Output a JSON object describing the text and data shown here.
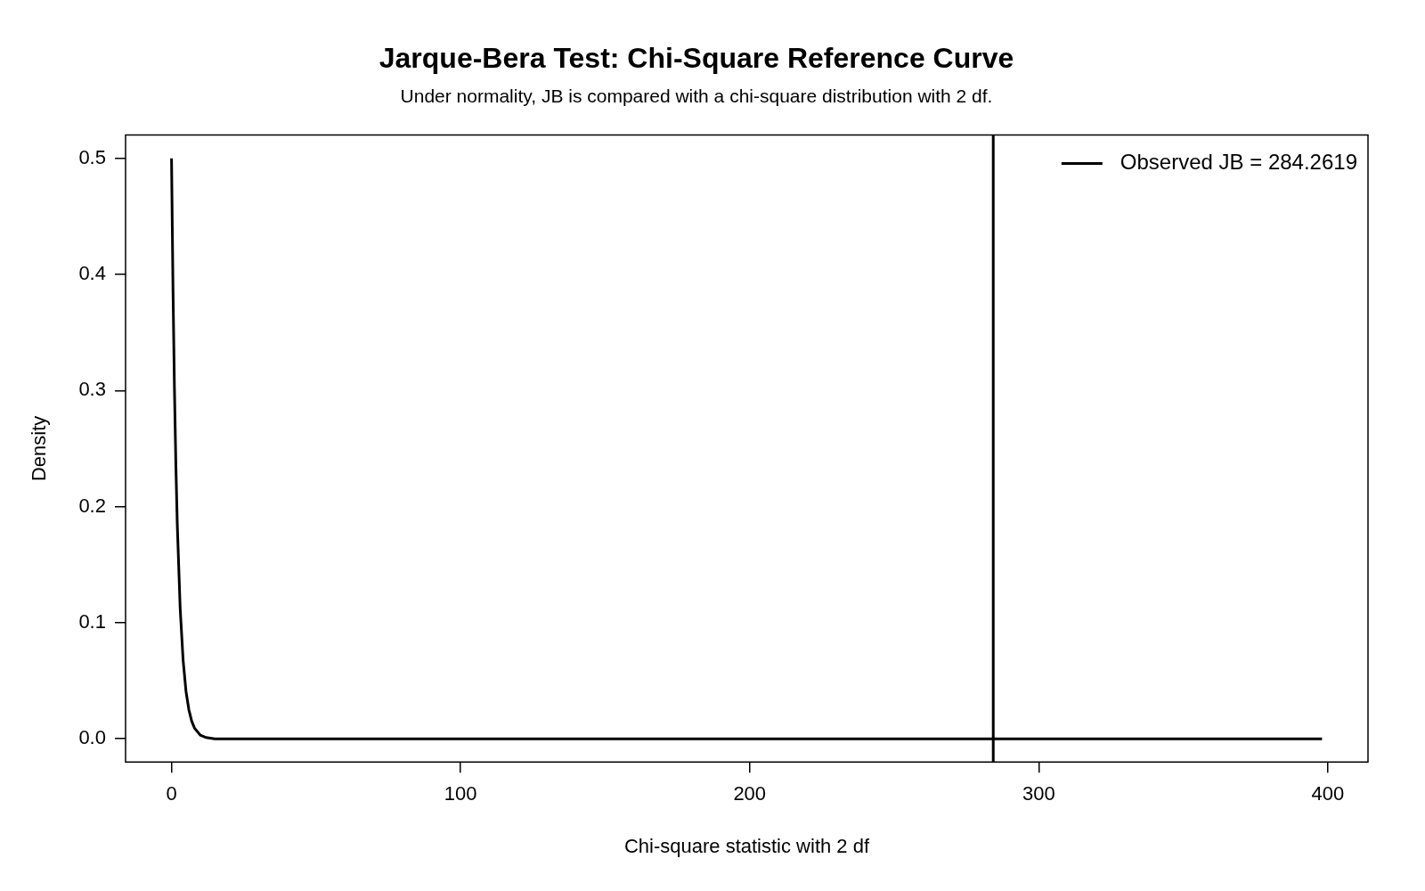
{
  "chart_data": {
    "type": "line",
    "title": "Jarque-Bera Test: Chi-Square Reference Curve",
    "subtitle": "Under normality, JB is compared with a chi-square distribution with 2 df.",
    "xlabel": "Chi-square statistic with 2 df",
    "ylabel": "Density",
    "series": [
      {
        "color": "#000000",
        "x": [
          0,
          0.5,
          1,
          1.5,
          2,
          3,
          4,
          5,
          6,
          7,
          8,
          10,
          12,
          15,
          20,
          50,
          100,
          200,
          300,
          398
        ],
        "values": [
          0.5,
          0.389,
          0.303,
          0.236,
          0.184,
          0.112,
          0.068,
          0.041,
          0.025,
          0.015,
          0.009,
          0.003,
          0.001,
          0,
          0,
          0,
          0,
          0,
          0,
          0
        ]
      }
    ],
    "xlim": [
      -15.9,
      413.9
    ],
    "xticks": [
      0,
      100,
      200,
      300,
      400
    ],
    "ylim": [
      -0.02,
      0.52
    ],
    "yticks": [
      {
        "value": 0,
        "label": "0.0"
      },
      0.1,
      0.2,
      0.3,
      0.4,
      0.5
    ],
    "ref_lines": [
      {
        "axis": "x",
        "value": 284.2619,
        "label": "Observed JB = 284.2619",
        "color": "#000000"
      }
    ],
    "legend": "top right",
    "grid": false,
    "marker": "none",
    "line_style": "solid"
  }
}
